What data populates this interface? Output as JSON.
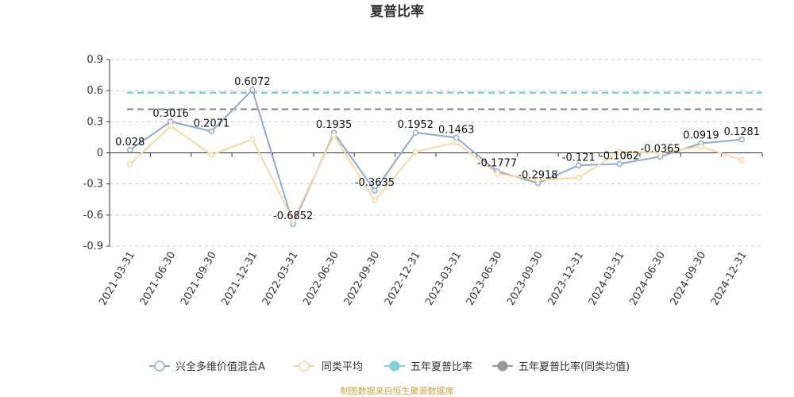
{
  "chart_data": {
    "type": "line",
    "title": "夏普比率",
    "source_note": "制图数据来自恒生聚源数据库",
    "ylim": [
      -0.9,
      0.9
    ],
    "yticks": [
      0.9,
      0.6,
      0.3,
      0,
      -0.3,
      -0.6,
      -0.9
    ],
    "ytick_labels": [
      "0.9",
      "0.6",
      "0.3",
      "0",
      "-0.3",
      "-0.6",
      "-0.9"
    ],
    "grid": true,
    "legend_position": "bottom",
    "categories": [
      "2021-03-31",
      "2021-06-30",
      "2021-09-30",
      "2021-12-31",
      "2022-03-31",
      "2022-06-30",
      "2022-09-30",
      "2022-12-31",
      "2023-03-31",
      "2023-06-30",
      "2023-09-30",
      "2023-12-31",
      "2024-03-31",
      "2024-06-30",
      "2024-09-30",
      "2024-12-31"
    ],
    "series": [
      {
        "name": "兴全多维价值混合A",
        "color": "#8fa9d8",
        "values": [
          0.028,
          0.3016,
          0.2071,
          0.6072,
          -0.6852,
          0.1935,
          -0.3635,
          0.1952,
          0.1463,
          -0.1777,
          -0.2918,
          -0.121,
          -0.1062,
          -0.0365,
          0.0919,
          0.1281
        ],
        "labels": [
          "0.028",
          "0.3016",
          "0.2071",
          "0.6072",
          "-0.6852",
          "0.1935",
          "-0.3635",
          "0.1952",
          "0.1463",
          "-0.1777",
          "-0.2918",
          "-0.121",
          "-0.1062",
          "-0.0365",
          "0.0919",
          "0.1281"
        ]
      },
      {
        "name": "同类平均",
        "color": "#f8d9a0",
        "values": [
          -0.11,
          0.26,
          -0.02,
          0.13,
          -0.65,
          0.17,
          -0.46,
          0.01,
          0.1,
          -0.2,
          -0.26,
          -0.24,
          0.01,
          0.0,
          0.06,
          -0.07
        ]
      },
      {
        "name": "五年夏普比率",
        "color": "#7fd0d8",
        "dashed": true,
        "constant": 0.58
      },
      {
        "name": "五年夏普比率(同类均值)",
        "color": "#999999",
        "dashed": true,
        "constant": 0.42
      }
    ]
  }
}
